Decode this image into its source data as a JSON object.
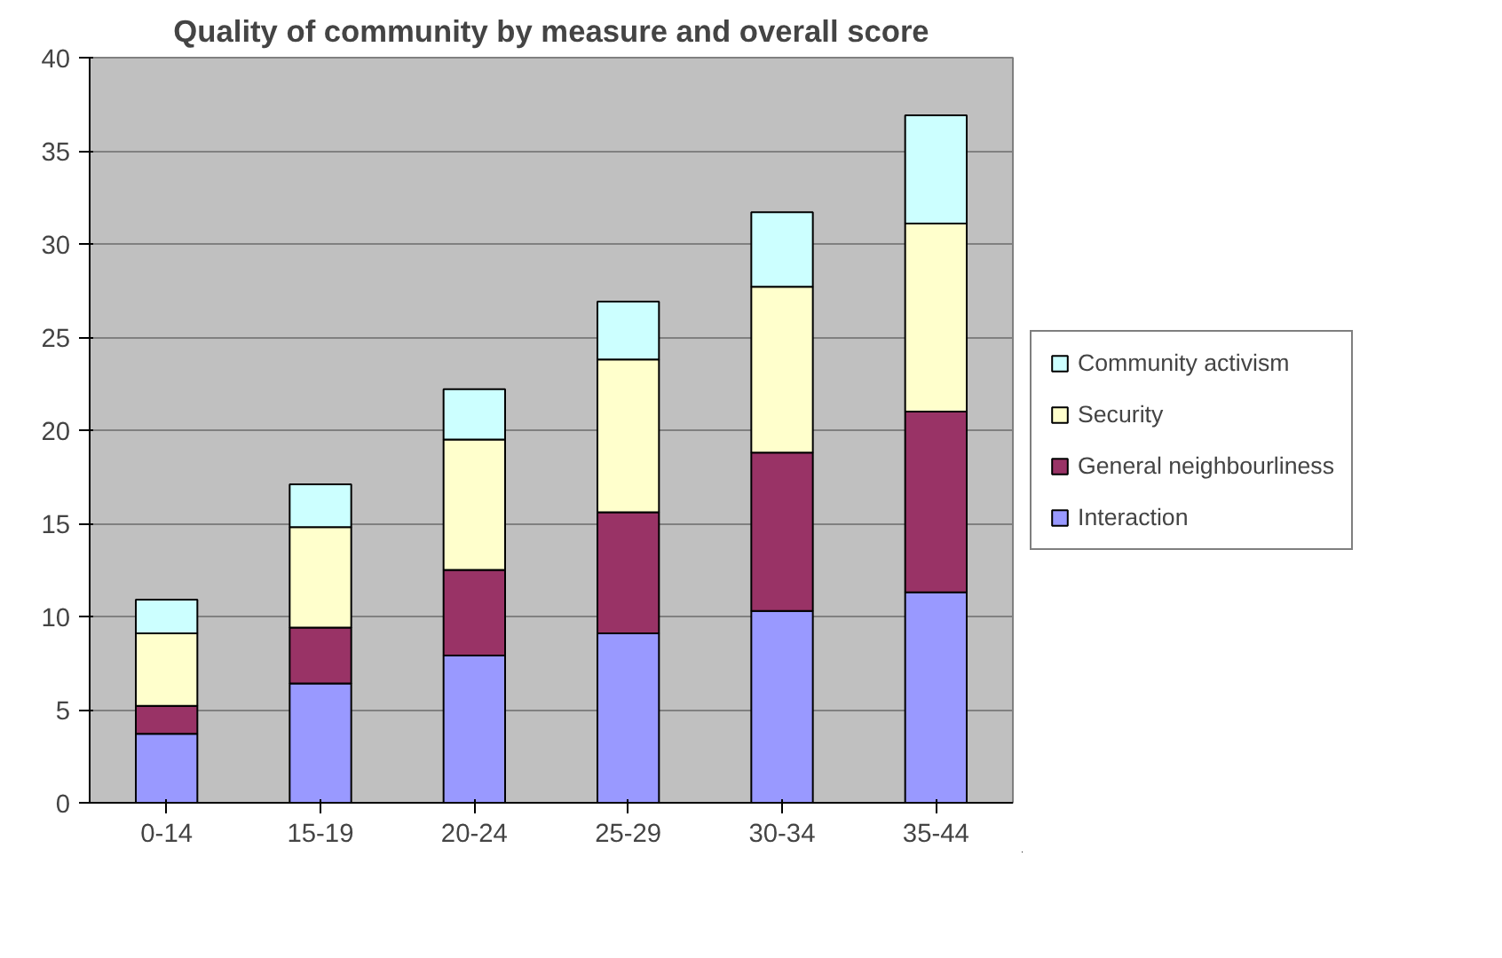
{
  "chart_data": {
    "type": "bar",
    "title": "Quality of community by measure and overall score",
    "categories": [
      "0-14",
      "15-19",
      "20-24",
      "25-29",
      "30-34",
      "35-44"
    ],
    "stacked": true,
    "series": [
      {
        "name": "Interaction",
        "color": "#9999ff",
        "values": [
          3.7,
          6.4,
          7.9,
          9.1,
          10.3,
          11.3
        ]
      },
      {
        "name": "General neighbourliness",
        "color": "#993366",
        "values": [
          1.5,
          3.0,
          4.6,
          6.5,
          8.5,
          9.7
        ]
      },
      {
        "name": "Security",
        "color": "#ffffcc",
        "values": [
          3.9,
          5.4,
          7.0,
          8.2,
          8.9,
          10.1
        ]
      },
      {
        "name": "Community activism",
        "color": "#ccffff",
        "values": [
          1.8,
          2.3,
          2.7,
          3.1,
          4.0,
          5.8
        ]
      }
    ],
    "ylim": [
      0,
      40
    ],
    "yticks": [
      0,
      5,
      10,
      15,
      20,
      25,
      30,
      35,
      40
    ],
    "grid": "y",
    "legend": "right"
  }
}
